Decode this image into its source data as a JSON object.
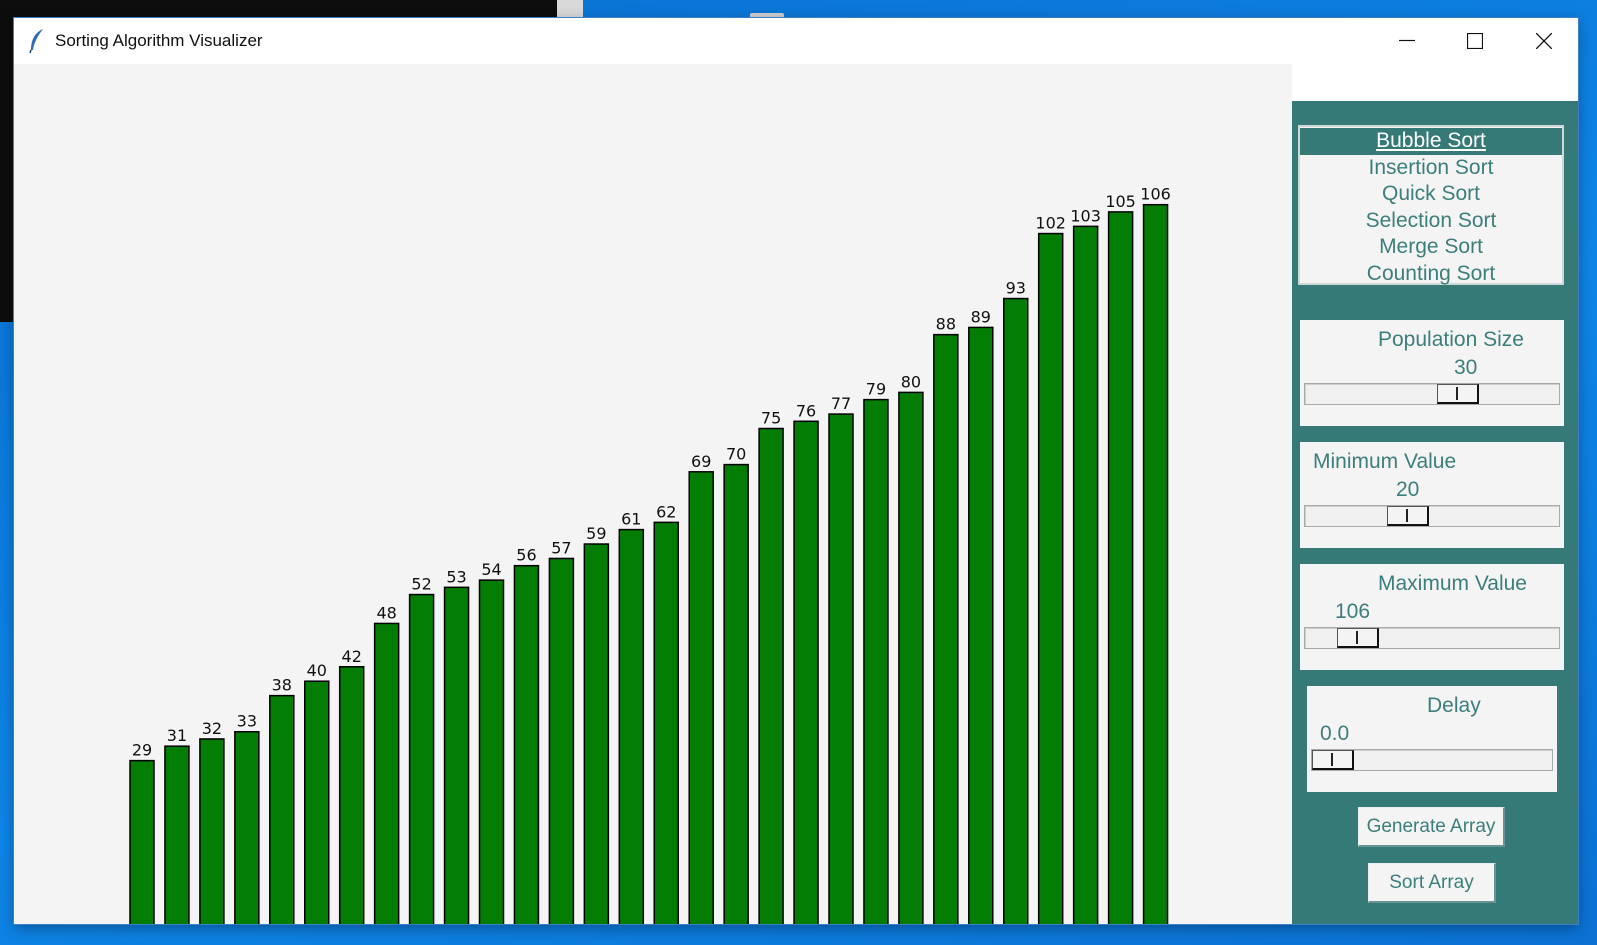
{
  "window": {
    "title": "Sorting Algorithm Visualizer",
    "icon": "feather-icon",
    "controls": [
      "minimize-icon",
      "maximize-icon",
      "close-icon"
    ]
  },
  "colors": {
    "bar_fill": "#037d03",
    "bar_stroke": "#000000",
    "panel_bg": "#367a78",
    "panel_text": "#3c7e7c",
    "canvas_bg": "#f4f4f4"
  },
  "algorithms": {
    "selected_index": 0,
    "items": [
      "Bubble Sort",
      "Insertion Sort",
      "Quick Sort",
      "Selection Sort",
      "Merge Sort",
      "Counting Sort"
    ]
  },
  "controls": {
    "population": {
      "label": "Population Size",
      "value": "30",
      "position": 0.63
    },
    "minimum": {
      "label": "Minimum Value",
      "value": "20",
      "position": 0.39
    },
    "maximum": {
      "label": "Maximum Value",
      "value": "106",
      "position": 0.15
    },
    "delay": {
      "label": "Delay",
      "value": "0.0",
      "position": 0.0
    }
  },
  "buttons": {
    "generate": "Generate Array",
    "sort": "Sort Array"
  },
  "chart_data": {
    "type": "bar",
    "values": [
      29,
      31,
      32,
      33,
      38,
      40,
      42,
      48,
      52,
      53,
      54,
      56,
      57,
      59,
      61,
      62,
      69,
      70,
      75,
      76,
      77,
      79,
      80,
      88,
      89,
      93,
      102,
      103,
      105,
      106
    ],
    "data_labels": true,
    "grid": false,
    "legend": "none"
  }
}
